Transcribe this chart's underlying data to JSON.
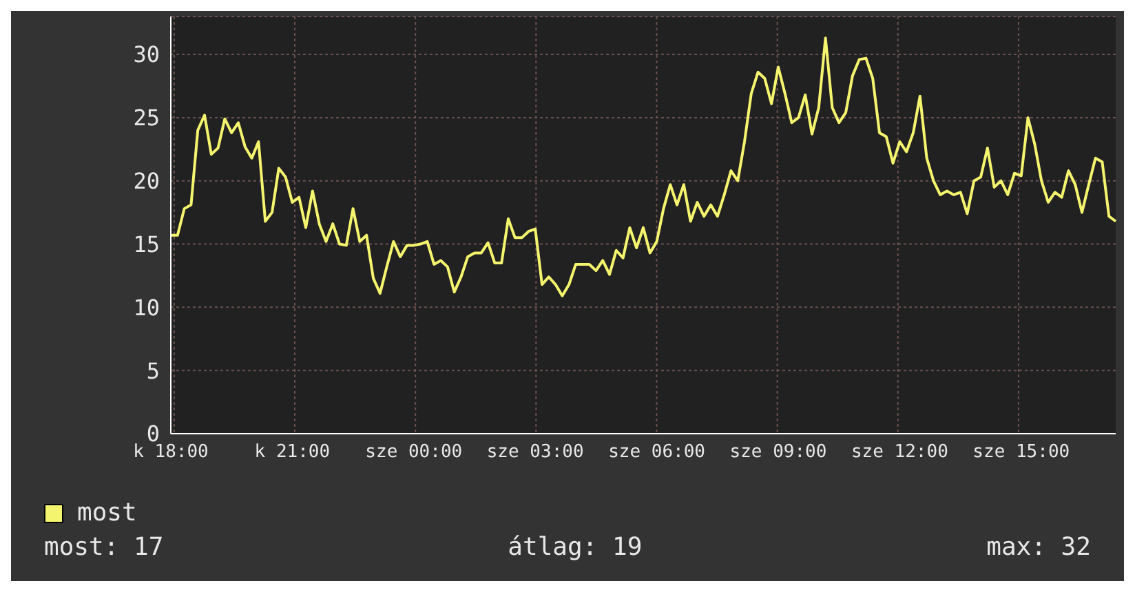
{
  "chart_data": {
    "type": "line",
    "categories": [
      "k 18:00",
      null,
      null,
      null,
      null,
      null,
      null,
      null,
      null,
      null,
      null,
      null,
      null,
      null,
      null,
      null,
      null,
      null,
      "k 21:00",
      null,
      null,
      null,
      null,
      null,
      null,
      null,
      null,
      null,
      null,
      null,
      null,
      null,
      null,
      null,
      null,
      null,
      "sze 00:00",
      null,
      null,
      null,
      null,
      null,
      null,
      null,
      null,
      null,
      null,
      null,
      null,
      null,
      null,
      null,
      null,
      null,
      "sze 03:00",
      null,
      null,
      null,
      null,
      null,
      null,
      null,
      null,
      null,
      null,
      null,
      null,
      null,
      null,
      null,
      null,
      null,
      "sze 06:00",
      null,
      null,
      null,
      null,
      null,
      null,
      null,
      null,
      null,
      null,
      null,
      null,
      null,
      null,
      null,
      null,
      null,
      "sze 09:00",
      null,
      null,
      null,
      null,
      null,
      null,
      null,
      null,
      null,
      null,
      null,
      null,
      null,
      null,
      null,
      null,
      null,
      "sze 12:00",
      null,
      null,
      null,
      null,
      null,
      null,
      null,
      null,
      null,
      null,
      null,
      null,
      null,
      null,
      null,
      null,
      null,
      "sze 15:00",
      null,
      null,
      null,
      null,
      null,
      null,
      null,
      null,
      null,
      null,
      null,
      null,
      null,
      null
    ],
    "series": [
      {
        "name": "most",
        "color": "#f4f46e",
        "values": [
          15.7,
          15.7,
          17.8,
          18.1,
          24,
          25.2,
          22.1,
          22.6,
          24.9,
          23.8,
          24.6,
          22.7,
          21.8,
          23.1,
          16.8,
          17.5,
          21,
          20.3,
          18.3,
          18.7,
          16.3,
          19.2,
          16.6,
          15.2,
          16.6,
          15,
          14.9,
          17.8,
          15.2,
          15.7,
          12.3,
          11.1,
          13.2,
          15.2,
          14,
          14.9,
          14.9,
          15,
          15.2,
          13.4,
          13.7,
          13.2,
          11.2,
          12.4,
          14,
          14.3,
          14.3,
          15.1,
          13.5,
          13.5,
          17,
          15.5,
          15.5,
          16,
          16.2,
          11.8,
          12.4,
          11.8,
          10.9,
          11.8,
          13.4,
          13.4,
          13.4,
          12.9,
          13.7,
          12.6,
          14.5,
          13.9,
          16.3,
          14.7,
          16.3,
          14.3,
          15.2,
          17.8,
          19.7,
          18.1,
          19.7,
          16.8,
          18.3,
          17.2,
          18.1,
          17.2,
          18.9,
          20.8,
          20,
          23.1,
          26.9,
          28.6,
          28.1,
          26.1,
          29,
          26.9,
          24.6,
          25,
          26.8,
          23.7,
          25.8,
          31.3,
          25.8,
          24.6,
          25.4,
          28.3,
          29.6,
          29.7,
          28.1,
          23.8,
          23.5,
          21.4,
          23.1,
          22.3,
          23.8,
          26.7,
          21.8,
          20,
          18.9,
          19.2,
          18.9,
          19.1,
          17.4,
          20,
          20.3,
          22.6,
          19.5,
          20,
          18.9,
          20.6,
          20.4,
          25,
          22.9,
          20,
          18.3,
          19.1,
          18.7,
          20.8,
          19.7,
          17.5,
          19.7,
          21.8,
          21.5,
          17.2,
          16.8
        ]
      }
    ],
    "ylim": [
      0,
      33
    ],
    "yticks": [
      0,
      5,
      10,
      15,
      20,
      25,
      30
    ],
    "grid": true,
    "legend": "bottom left",
    "annotations": [
      "most: 17",
      "átlag: 19",
      "max: 32"
    ]
  }
}
